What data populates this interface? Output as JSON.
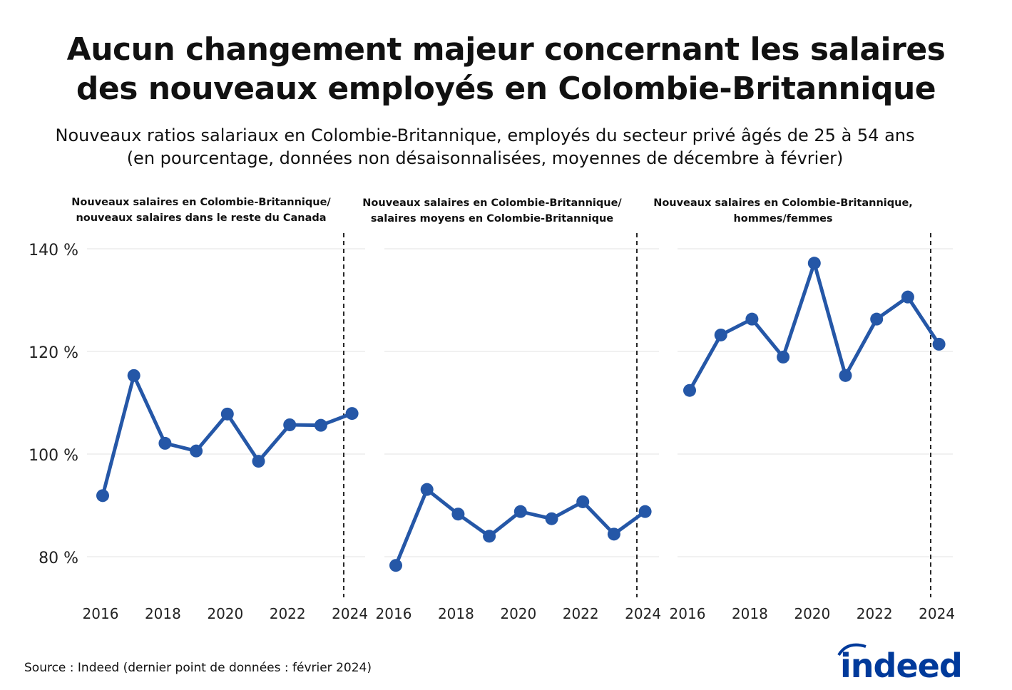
{
  "title": "Aucun changement majeur concernant les salaires des nouveaux employés en Colombie-Britannique",
  "title_lines": [
    "Aucun changement majeur concernant les salaires",
    "des nouveaux employés en Colombie-Britannique"
  ],
  "subtitle_lines": [
    "Nouveaux ratios salariaux en Colombie-Britannique, employés du secteur privé âgés de 25 à 54 ans",
    "(en pourcentage, données non désaisonnalisées, moyennes de décembre à février)"
  ],
  "source": "Source : Indeed (dernier point de données : février 2024)",
  "logo": "indeed",
  "colors": {
    "line": "#2557a7",
    "grid": "#e3e3e3",
    "logo": "#003a9b"
  },
  "chart_data": [
    {
      "type": "line",
      "title_lines": [
        "Nouveaux salaires en Colombie-Britannique/",
        "nouveaux salaires dans le reste du Canada"
      ],
      "x": [
        2016,
        2017,
        2018,
        2019,
        2020,
        2021,
        2022,
        2023,
        2024
      ],
      "values": [
        91.9,
        115.3,
        102.1,
        100.6,
        107.8,
        98.6,
        105.7,
        105.6,
        107.9
      ],
      "ylim": [
        73,
        143
      ],
      "yticks": [
        80,
        100,
        120,
        140
      ],
      "ytick_labels": [
        "80 %",
        "100 %",
        "120 %",
        "140 %"
      ],
      "xticks": [
        "2016",
        "2018",
        "2020",
        "2022",
        "2024"
      ],
      "grid": true,
      "reference_line": "dashed vertical line before latest point"
    },
    {
      "type": "line",
      "title_lines": [
        "Nouveaux salaires en Colombie-Britannique/",
        "salaires moyens en Colombie-Britannique"
      ],
      "x": [
        2016,
        2017,
        2018,
        2019,
        2020,
        2021,
        2022,
        2023,
        2024
      ],
      "values": [
        78.3,
        93.1,
        88.3,
        84.0,
        88.8,
        87.4,
        90.7,
        84.4,
        88.8
      ],
      "ylim": [
        73,
        143
      ],
      "yticks": [
        80,
        100,
        120,
        140
      ],
      "xticks": [
        "2016",
        "2018",
        "2020",
        "2022",
        "2024"
      ],
      "grid": true
    },
    {
      "type": "line",
      "title_lines": [
        "Nouveaux salaires en Colombie-Britannique,",
        "hommes/femmes"
      ],
      "x": [
        2016,
        2017,
        2018,
        2019,
        2020,
        2021,
        2022,
        2023,
        2024
      ],
      "values": [
        112.4,
        123.2,
        126.3,
        118.9,
        137.2,
        115.3,
        126.3,
        130.6,
        121.4
      ],
      "ylim": [
        73,
        143
      ],
      "yticks": [
        80,
        100,
        120,
        140
      ],
      "xticks": [
        "2016",
        "2018",
        "2020",
        "2022",
        "2024"
      ],
      "grid": true
    }
  ]
}
